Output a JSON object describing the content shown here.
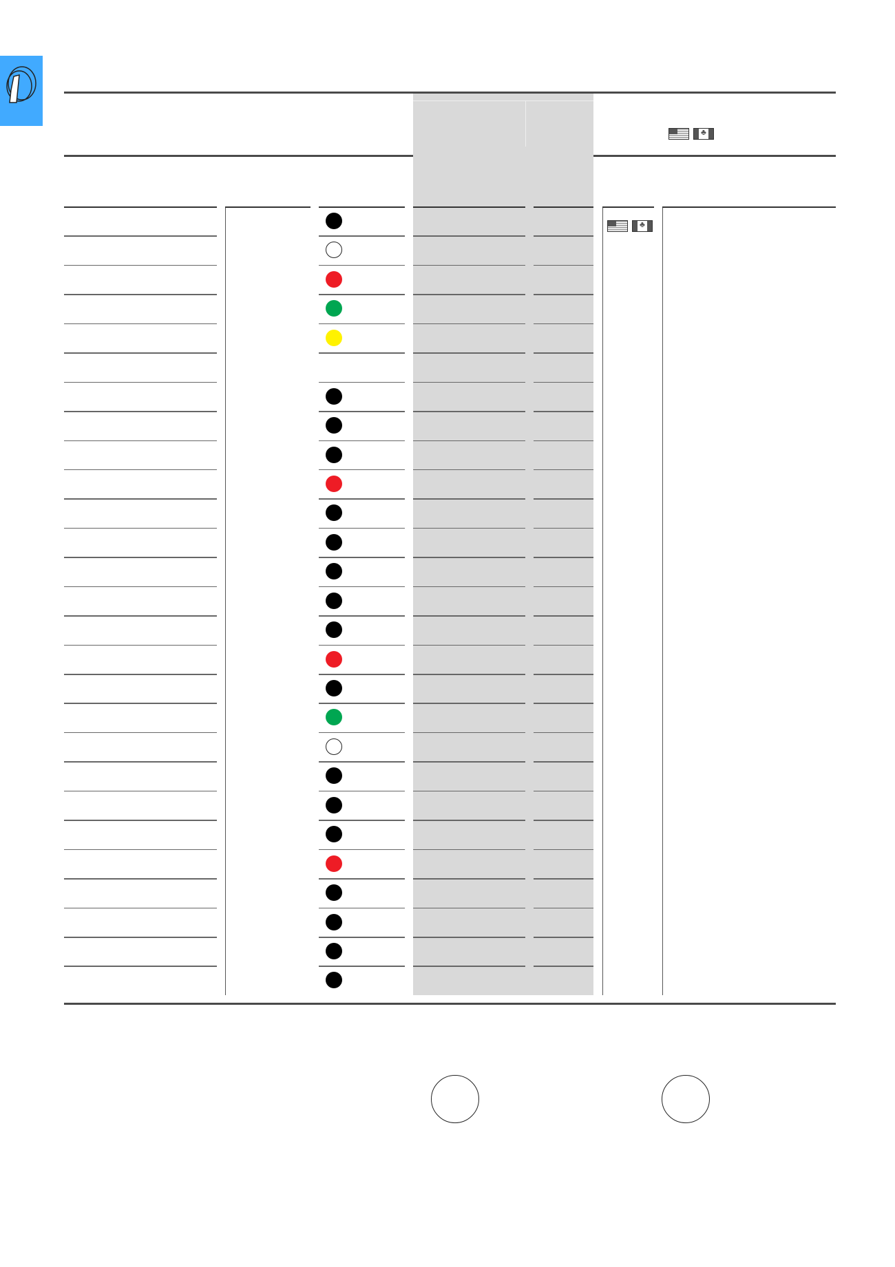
{
  "side_tab": {
    "color": "#41aaff",
    "icon": "selector-switch-icon"
  },
  "header_flags": [
    "us-flag-icon",
    "canada-flag-icon"
  ],
  "row_flags": [
    "us-flag-icon",
    "canada-flag-icon"
  ],
  "colors": {
    "black": "#000000",
    "white": "#ffffff",
    "red": "#ee1c25",
    "green": "#00a651",
    "yellow": "#fff200",
    "shade": "#d9d9d9"
  },
  "rows": [
    {
      "dot": "black"
    },
    {
      "dot": "white"
    },
    {
      "dot": "red"
    },
    {
      "dot": "green"
    },
    {
      "dot": "yellow"
    },
    {
      "dot": null
    },
    {
      "dot": "black"
    },
    {
      "dot": "black"
    },
    {
      "dot": "black"
    },
    {
      "dot": "red"
    },
    {
      "dot": "black"
    },
    {
      "dot": "black"
    },
    {
      "dot": "black"
    },
    {
      "dot": "black"
    },
    {
      "dot": "black"
    },
    {
      "dot": "red"
    },
    {
      "dot": "black"
    },
    {
      "dot": "green"
    },
    {
      "dot": "white"
    },
    {
      "dot": "black"
    },
    {
      "dot": "black"
    },
    {
      "dot": "black"
    },
    {
      "dot": "red"
    },
    {
      "dot": "black"
    },
    {
      "dot": "black"
    },
    {
      "dot": "black"
    },
    {
      "dot": "black"
    }
  ],
  "footer_circles": 2
}
